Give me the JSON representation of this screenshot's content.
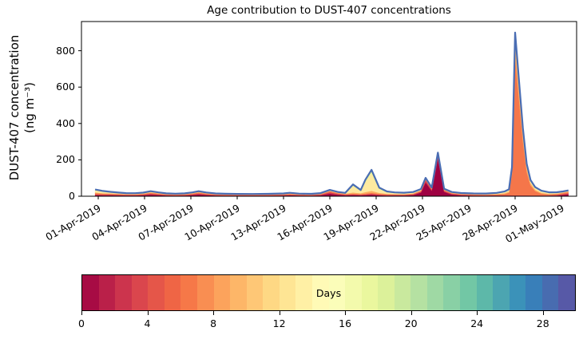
{
  "figure": {
    "title": "Age contribution to DUST-407 concentrations",
    "ylabel_line1": "DUST-407 concentration",
    "ylabel_line2": "(ng m⁻³)",
    "background": "#ffffff"
  },
  "chart_data": {
    "type": "area",
    "subtype": "stacked-area-by-age",
    "title": "Age contribution to DUST-407 concentrations",
    "xlabel": "",
    "ylabel": "DUST-407 concentration (ng m^-3)",
    "ylim": [
      0,
      958
    ],
    "yticks": [
      0,
      200,
      400,
      600,
      800
    ],
    "xtick_labels": [
      "01-Apr-2019",
      "04-Apr-2019",
      "07-Apr-2019",
      "10-Apr-2019",
      "13-Apr-2019",
      "16-Apr-2019",
      "19-Apr-2019",
      "22-Apr-2019",
      "25-Apr-2019",
      "28-Apr-2019",
      "01-May-2019"
    ],
    "xtick_days": [
      0,
      3,
      6,
      9,
      12,
      15,
      18,
      21,
      24,
      27,
      30
    ],
    "grid": false,
    "legend": "none",
    "total_line": {
      "color": "#4a6db3",
      "width": 2.2,
      "meaning": "total concentration outline"
    },
    "series_meta": [
      {
        "name": "age 0-2 days",
        "color": "#9e0142"
      },
      {
        "name": "age 2-4 days",
        "color": "#d53e4f"
      },
      {
        "name": "age 4-8 days",
        "color": "#f5764a"
      },
      {
        "name": "age 8-12 days",
        "color": "#fdae61"
      },
      {
        "name": "age 12-16 days",
        "color": "#feeaa0"
      },
      {
        "name": "age 16-20 days",
        "color": "#e8f59b"
      },
      {
        "name": "age 20-25 days",
        "color": "#a3daa4"
      },
      {
        "name": "age 25-30 days",
        "color": "#6ec6a8"
      }
    ],
    "rows_format": [
      "day_since_01Apr",
      "age0_2",
      "age2_4",
      "age4_8",
      "age8_12",
      "age12_16",
      "age16_20",
      "age20_25",
      "age25_30"
    ],
    "rows": [
      [
        -0.2,
        6,
        5,
        6,
        4,
        12,
        2,
        1,
        1
      ],
      [
        0.3,
        5,
        4,
        5,
        3,
        8,
        2,
        1,
        1
      ],
      [
        0.8,
        5,
        4,
        4,
        3,
        5,
        1.5,
        1,
        0.8
      ],
      [
        1.3,
        4.5,
        3.5,
        3.5,
        2.5,
        3.5,
        1.2,
        0.8,
        0.6
      ],
      [
        1.8,
        4,
        3,
        3,
        2,
        3,
        1,
        0.8,
        0.5
      ],
      [
        2.4,
        4,
        3,
        3,
        2,
        2.5,
        1,
        0.7,
        0.5
      ],
      [
        2.9,
        5,
        4,
        3.5,
        2.5,
        2.5,
        1,
        0.8,
        0.5
      ],
      [
        3.4,
        8,
        6,
        5,
        3,
        3,
        1.2,
        0.8,
        0.6
      ],
      [
        3.9,
        6,
        4,
        4,
        2.5,
        2.5,
        1,
        0.7,
        0.5
      ],
      [
        4.4,
        4,
        3,
        3,
        2,
        1.8,
        0.8,
        0.6,
        0.4
      ],
      [
        5,
        3.5,
        2.8,
        2.8,
        1.8,
        1.6,
        0.8,
        0.5,
        0.4
      ],
      [
        5.6,
        4,
        3.2,
        3,
        2,
        1.8,
        0.8,
        0.6,
        0.4
      ],
      [
        6.1,
        6,
        4.5,
        4,
        2.5,
        2,
        1,
        0.7,
        0.5
      ],
      [
        6.5,
        9,
        6,
        5,
        3,
        2.2,
        1,
        0.8,
        0.5
      ],
      [
        7,
        6,
        4,
        4,
        2.5,
        2,
        1,
        0.7,
        0.5
      ],
      [
        7.6,
        4,
        3,
        3,
        2,
        1.6,
        0.8,
        0.6,
        0.4
      ],
      [
        8.2,
        3.5,
        2.6,
        2.6,
        1.6,
        1.5,
        0.7,
        0.5,
        0.4
      ],
      [
        9,
        3.2,
        2.5,
        2.5,
        1.5,
        1.4,
        0.7,
        0.5,
        0.4
      ],
      [
        10,
        3.2,
        2.4,
        2.4,
        1.5,
        1.4,
        0.7,
        0.5,
        0.4
      ],
      [
        11,
        3.4,
        2.6,
        2.5,
        1.6,
        1.5,
        0.7,
        0.5,
        0.4
      ],
      [
        12,
        4,
        3,
        3,
        1.8,
        1.8,
        0.8,
        0.6,
        0.4
      ],
      [
        12.4,
        5,
        3.8,
        3.4,
        2.2,
        2.2,
        1,
        0.7,
        0.5
      ],
      [
        13,
        3.8,
        2.8,
        2.8,
        1.8,
        1.6,
        0.8,
        0.6,
        0.4
      ],
      [
        13.8,
        3.4,
        2.6,
        2.4,
        1.6,
        1.5,
        0.7,
        0.5,
        0.4
      ],
      [
        14.4,
        5,
        3.5,
        3,
        2,
        1.8,
        0.8,
        0.6,
        0.4
      ],
      [
        15,
        14,
        8,
        5,
        3,
        2.2,
        1,
        0.8,
        0.5
      ],
      [
        15.5,
        8,
        5,
        4,
        2.5,
        2,
        1,
        0.7,
        0.5
      ],
      [
        16,
        5,
        3.5,
        3.5,
        2.2,
        2,
        1,
        0.7,
        0.5
      ],
      [
        16.5,
        6,
        4,
        4.5,
        6,
        35,
        6,
        2,
        1.5
      ],
      [
        17,
        5,
        3.5,
        4,
        4,
        12,
        3,
        1.5,
        1
      ],
      [
        17.3,
        6,
        4,
        5,
        8,
        55,
        8,
        3,
        2
      ],
      [
        17.7,
        8,
        5,
        6,
        11,
        96,
        12,
        4,
        3
      ],
      [
        18.2,
        5,
        4,
        4.5,
        5,
        20,
        5,
        2,
        1.5
      ],
      [
        18.7,
        4,
        3,
        3.5,
        3,
        8,
        3,
        1.2,
        0.8
      ],
      [
        19.2,
        4,
        3,
        3,
        2.5,
        5,
        2,
        1,
        0.7
      ],
      [
        19.8,
        3.8,
        2.8,
        3,
        2.2,
        4,
        1.8,
        0.9,
        0.6
      ],
      [
        20.4,
        6,
        4,
        3.5,
        2.5,
        4,
        1.8,
        0.9,
        0.6
      ],
      [
        20.9,
        20,
        6,
        4,
        3,
        3.5,
        1.5,
        0.8,
        0.5
      ],
      [
        21.2,
        76,
        12,
        4,
        3,
        3,
        1.5,
        0.8,
        0.5
      ],
      [
        21.6,
        30,
        7,
        3.5,
        2.5,
        2.5,
        1.2,
        0.7,
        0.5
      ],
      [
        22,
        206,
        20,
        5,
        3,
        3,
        1.5,
        0.8,
        0.7
      ],
      [
        22.4,
        24,
        6,
        3.5,
        2.5,
        2.5,
        1.2,
        0.7,
        0.5
      ],
      [
        22.9,
        9,
        4.5,
        3.2,
        2.2,
        2.2,
        1,
        0.6,
        0.5
      ],
      [
        23.5,
        5,
        3.5,
        3,
        2,
        2,
        1,
        0.6,
        0.4
      ],
      [
        24.3,
        3.5,
        2.8,
        3,
        2,
        2,
        1,
        0.6,
        0.4
      ],
      [
        25.1,
        3,
        2.5,
        3,
        2.2,
        2.2,
        1.1,
        0.7,
        0.4
      ],
      [
        25.8,
        3,
        2.8,
        4,
        2.8,
        3,
        1.4,
        0.8,
        0.5
      ],
      [
        26.3,
        3,
        3,
        6,
        4.5,
        5,
        2.5,
        1.4,
        0.6
      ],
      [
        26.6,
        2.5,
        3,
        14,
        7,
        6,
        3,
        1.6,
        0.8
      ],
      [
        26.8,
        2,
        3,
        120,
        18,
        10,
        4,
        2,
        1.5
      ],
      [
        27,
        2,
        3,
        762,
        80,
        38,
        9,
        3.5,
        2.5
      ],
      [
        27.25,
        2,
        3,
        530,
        60,
        30,
        8,
        3,
        2
      ],
      [
        27.5,
        2,
        3,
        300,
        40,
        20,
        6,
        2.5,
        2
      ],
      [
        27.75,
        2,
        3,
        130,
        22,
        13,
        4.5,
        2,
        1.5
      ],
      [
        28,
        2,
        2.5,
        55,
        13,
        10,
        3.5,
        1.8,
        1.2
      ],
      [
        28.3,
        2,
        2.5,
        24,
        8,
        8,
        3,
        1.5,
        1
      ],
      [
        28.7,
        2,
        2.2,
        10,
        5,
        6.5,
        2.5,
        1.2,
        0.8
      ],
      [
        29.2,
        2.5,
        2.2,
        5,
        3.5,
        4.5,
        2,
        1,
        0.8
      ],
      [
        29.7,
        4,
        3,
        5,
        3,
        3.5,
        1.8,
        1,
        0.7
      ],
      [
        30.1,
        7,
        4.5,
        6,
        3,
        3,
        1.5,
        0.9,
        0.6
      ],
      [
        30.45,
        10,
        6,
        7,
        3.5,
        2.5,
        1.5,
        0.9,
        0.6
      ]
    ],
    "colorbar": {
      "label": "Days",
      "min": 0,
      "max": 30,
      "ticks": [
        0,
        4,
        8,
        12,
        16,
        20,
        24,
        28
      ],
      "n_segments": 30,
      "colormap": "Spectral",
      "colormap_anchors": [
        "#9e0142",
        "#d53e4f",
        "#f46d43",
        "#fdae61",
        "#fee08b",
        "#ffffbf",
        "#e6f598",
        "#abdda4",
        "#66c2a5",
        "#3288bd",
        "#5e4fa2"
      ]
    }
  }
}
